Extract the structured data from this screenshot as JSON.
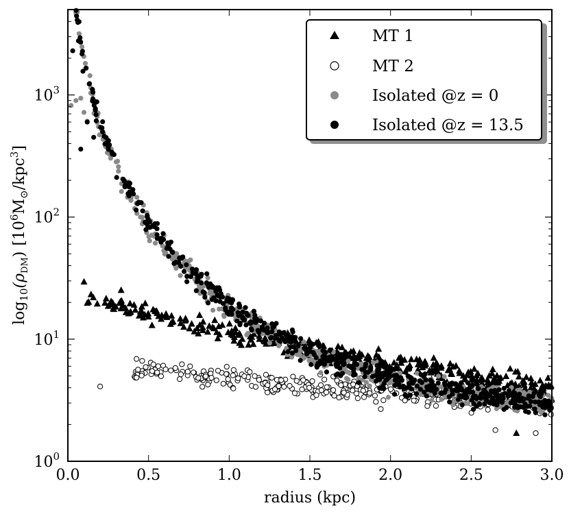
{
  "chart_data": {
    "type": "scatter",
    "title": "",
    "xlabel": "radius (kpc)",
    "ylabel_parts": {
      "pre": "log",
      "sub": "10",
      "rho": "(ρ",
      "rho_sub": "DM",
      "rho_close": ")",
      "unit_open": "[10",
      "unit_exp": "6",
      "unit_mid": "M",
      "unit_sun": "⊙",
      "unit_slash": "/kpc",
      "unit_exp2": "3",
      "unit_close": "]"
    },
    "xlim": [
      0.0,
      3.0
    ],
    "ylim": [
      1,
      5000
    ],
    "yscale": "log",
    "x_ticks": [
      0.0,
      0.5,
      1.0,
      1.5,
      2.0,
      2.5,
      3.0
    ],
    "x_tick_labels": [
      "0.0",
      "0.5",
      "1.0",
      "1.5",
      "2.0",
      "2.5",
      "3.0"
    ],
    "y_ticks": [
      {
        "value": 1,
        "base": "10",
        "exp": "0"
      },
      {
        "value": 10,
        "base": "10",
        "exp": "1"
      },
      {
        "value": 100,
        "base": "10",
        "exp": "2"
      },
      {
        "value": 1000,
        "base": "10",
        "exp": "3"
      }
    ],
    "legend_position": "top-right",
    "series": [
      {
        "name": "MT 1",
        "marker": "triangle",
        "color": "#000000",
        "profile": {
          "a": 21,
          "r0": 1.3,
          "floor": 1.9,
          "noise": 0.07,
          "start": 0.1,
          "count": 340
        },
        "points": [
          [
            0.1,
            29.5
          ],
          [
            0.23,
            19.8
          ],
          [
            0.33,
            25.2
          ],
          [
            0.26,
            19.2
          ],
          [
            0.45,
            15.8
          ],
          [
            0.55,
            17.0
          ],
          [
            2.78,
            1.7
          ]
        ]
      },
      {
        "name": "MT 2",
        "marker": "open-circle",
        "color": "#000000",
        "profile": {
          "a": 4.9,
          "r0": 2.0,
          "floor": 1.8,
          "noise": 0.075,
          "start": 0.4,
          "count": 380
        },
        "points": [
          [
            0.2,
            4.1
          ],
          [
            0.42,
            5.4
          ],
          [
            0.56,
            6.0
          ],
          [
            2.65,
            1.8
          ],
          [
            2.9,
            1.7
          ]
        ]
      },
      {
        "name": "Isolated @z = 0",
        "marker": "filled-circle",
        "color": "#8a8a8a",
        "profile": {
          "rho0": 1300,
          "rs": 0.27,
          "noise": 0.08,
          "start": 0.02,
          "count": 620
        },
        "points": [
          [
            0.02,
            820
          ],
          [
            0.05,
            900
          ],
          [
            0.08,
            940
          ],
          [
            0.1,
            720
          ],
          [
            0.12,
            610
          ]
        ]
      },
      {
        "name": "Isolated @z = 13.5",
        "marker": "filled-circle",
        "color": "#000000",
        "profile": {
          "rho0": 1250,
          "rs": 0.28,
          "noise": 0.085,
          "start": 0.03,
          "count": 620
        },
        "points": [
          [
            0.03,
            2300
          ],
          [
            0.08,
            360
          ],
          [
            0.12,
            600
          ],
          [
            0.16,
            450
          ]
        ]
      }
    ]
  }
}
